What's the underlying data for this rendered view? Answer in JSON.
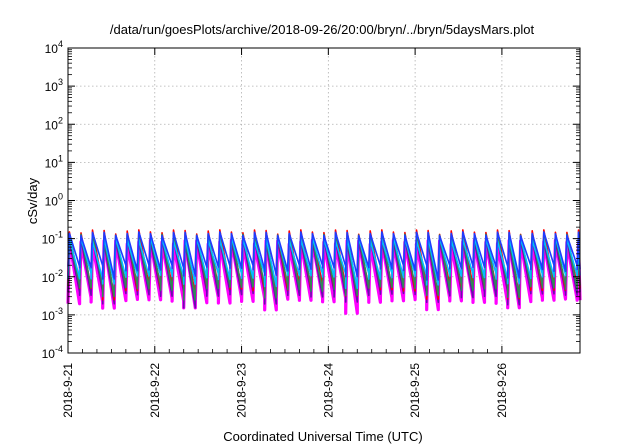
{
  "chart_data": {
    "type": "line",
    "title": "/data/run/goesPlots/archive/2018-09-26/20:00/bryn/../bryn/5daysMars.plot",
    "xlabel": "Coordinated Universal Time (UTC)",
    "ylabel": "cSv/day",
    "yscale": "log",
    "ylim_exp": [
      -4,
      4
    ],
    "ytick_exponents": [
      -4,
      -3,
      -2,
      -1,
      0,
      1,
      2,
      3,
      4
    ],
    "xlim_days": [
      0,
      5.9
    ],
    "xtick_labels": [
      "2018-9-21",
      "2018-9-22",
      "2018-9-23",
      "2018-9-24",
      "2018-9-25",
      "2018-9-26"
    ],
    "grid": true,
    "cycle_hours": 3.2,
    "series": [
      {
        "color": "#ff00ff",
        "peak": 0.09,
        "trough": 0.0028
      },
      {
        "color": "#ff0000",
        "peak": 0.17,
        "trough": 0.006
      },
      {
        "color": "#2e8b57",
        "peak": 0.13,
        "trough": 0.006
      },
      {
        "color": "#00bfff",
        "peak": 0.11,
        "trough": 0.012
      },
      {
        "color": "#1e3cff",
        "peak": 0.15,
        "trough": 0.02
      },
      {
        "color": "#6a0dad",
        "peak": 0.1,
        "trough": 0.004
      }
    ]
  }
}
